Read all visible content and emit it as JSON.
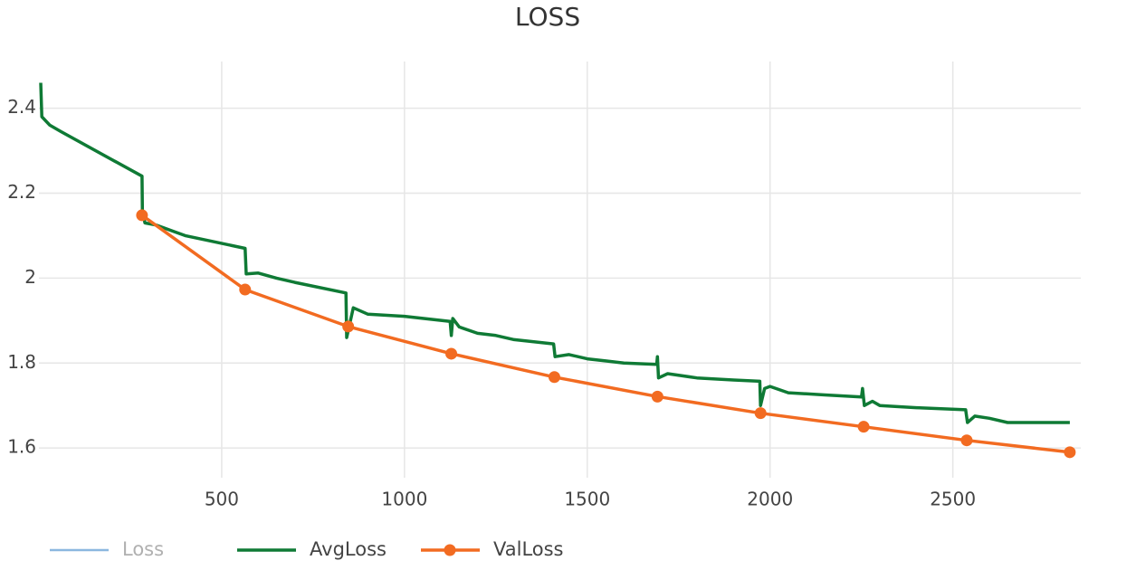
{
  "chart_data": {
    "type": "line",
    "title": "LOSS",
    "xlim": [
      0,
      2850
    ],
    "ylim": [
      1.53,
      2.51
    ],
    "xticks": [
      500,
      1000,
      1500,
      2000,
      2500
    ],
    "yticks": [
      1.6,
      1.8,
      2,
      2.2,
      2.4
    ],
    "grid": true,
    "legend": "bottom-left",
    "series": [
      {
        "name": "Loss",
        "color": "#7fb0dc",
        "visible": false,
        "x": [],
        "values": []
      },
      {
        "name": "AvgLoss",
        "color": "#0f7a35",
        "markers": false,
        "x": [
          5,
          8,
          30,
          60,
          282,
          283,
          290,
          320,
          400,
          564,
          567,
          600,
          650,
          700,
          840,
          842,
          860,
          900,
          1000,
          1125,
          1128,
          1132,
          1150,
          1200,
          1250,
          1300,
          1408,
          1412,
          1450,
          1500,
          1550,
          1600,
          1690,
          1692,
          1695,
          1720,
          1800,
          1900,
          1972,
          1974,
          1985,
          2000,
          2050,
          2150,
          2250,
          2253,
          2258,
          2280,
          2300,
          2400,
          2535,
          2540,
          2560,
          2600,
          2650,
          2750,
          2820
        ],
        "values": [
          2.46,
          2.38,
          2.36,
          2.345,
          2.24,
          2.16,
          2.13,
          2.125,
          2.1,
          2.07,
          2.01,
          2.012,
          2.0,
          1.99,
          1.965,
          1.86,
          1.93,
          1.915,
          1.91,
          1.898,
          1.865,
          1.905,
          1.885,
          1.87,
          1.865,
          1.855,
          1.845,
          1.815,
          1.82,
          1.81,
          1.805,
          1.8,
          1.797,
          1.815,
          1.765,
          1.775,
          1.765,
          1.76,
          1.757,
          1.7,
          1.74,
          1.745,
          1.73,
          1.725,
          1.72,
          1.74,
          1.7,
          1.71,
          1.7,
          1.695,
          1.69,
          1.66,
          1.675,
          1.67,
          1.66,
          1.66,
          1.66
        ]
      },
      {
        "name": "ValLoss",
        "color": "#f26b21",
        "markers": true,
        "x": [
          282,
          564,
          846,
          1128,
          1410,
          1692,
          1974,
          2256,
          2538,
          2820
        ],
        "values": [
          2.148,
          1.973,
          1.886,
          1.822,
          1.767,
          1.721,
          1.682,
          1.65,
          1.618,
          1.59
        ]
      }
    ]
  }
}
